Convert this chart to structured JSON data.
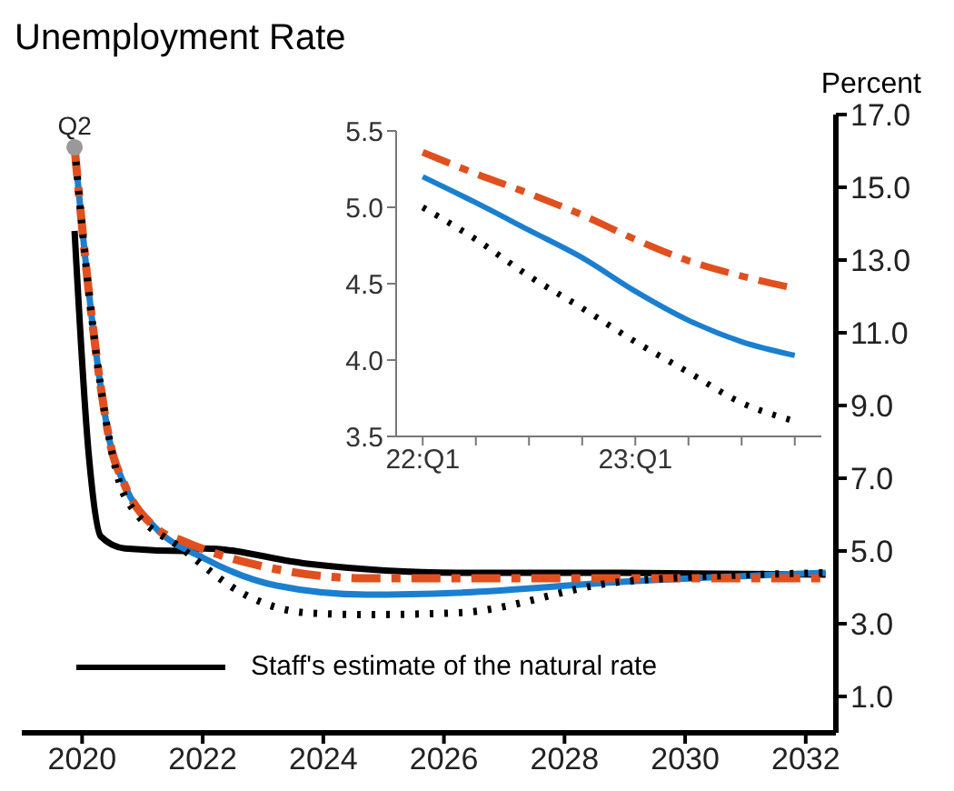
{
  "chart_data": [
    {
      "type": "line",
      "title": "Unemployment Rate",
      "ylabel": "Percent",
      "xlim": [
        2019.5,
        2033
      ],
      "ylim": [
        0,
        17
      ],
      "xticks": [
        {
          "value": 2020.5,
          "label": "2020"
        },
        {
          "value": 2022.5,
          "label": "2022"
        },
        {
          "value": 2024.5,
          "label": "2024"
        },
        {
          "value": 2026.5,
          "label": "2026"
        },
        {
          "value": 2028.5,
          "label": "2028"
        },
        {
          "value": 2030.5,
          "label": "2030"
        },
        {
          "value": 2032.5,
          "label": "2032"
        }
      ],
      "yticks": [
        {
          "value": 1,
          "label": "1.0"
        },
        {
          "value": 3,
          "label": "3.0"
        },
        {
          "value": 5,
          "label": "5.0"
        },
        {
          "value": 7,
          "label": "7.0"
        },
        {
          "value": 9,
          "label": "9.0"
        },
        {
          "value": 11,
          "label": "11.0"
        },
        {
          "value": 13,
          "label": "13.0"
        },
        {
          "value": 15,
          "label": "15.0"
        },
        {
          "value": 17,
          "label": "17.0"
        }
      ],
      "grid": false,
      "legend": "bottom",
      "annotations": [
        {
          "text": "Q2",
          "x": 2020.375,
          "y": 16.1
        }
      ],
      "series": [
        {
          "name": "Staff's estimate of the natural rate",
          "color": "#000000",
          "line_style": "solid",
          "x": [
            2020.375,
            2020.61,
            2020.81,
            2021.21,
            2022.21,
            2022.52,
            2024.23,
            2026.73,
            2029.43,
            2032.83
          ],
          "values": [
            13.8,
            7.65,
            5.4,
            5.07,
            5.0,
            5.07,
            4.65,
            4.4,
            4.4,
            4.35
          ]
        },
        {
          "color": "#1b7fd0",
          "line_style": "solid",
          "x": [
            2020.375,
            2020.61,
            2020.81,
            2020.96,
            2021.21,
            2021.71,
            2022.52,
            2023.72,
            2025.22,
            2026.73,
            2029.43,
            2032.83
          ],
          "values": [
            16.1,
            12.15,
            9.5,
            8.0,
            6.8,
            5.65,
            4.8,
            4.05,
            3.8,
            3.85,
            4.15,
            4.4
          ]
        },
        {
          "color": "#e0501e",
          "line_style": "dashed",
          "x": [
            2020.375,
            2020.61,
            2020.81,
            2020.96,
            2021.21,
            2021.71,
            2022.21,
            2023.72,
            2025.22,
            2026.73,
            2029.43,
            2032.83
          ],
          "values": [
            16.1,
            12.15,
            9.5,
            8.0,
            6.8,
            5.65,
            5.25,
            4.5,
            4.25,
            4.25,
            4.25,
            4.25
          ]
        },
        {
          "color": "#000000",
          "line_style": "dotted",
          "x": [
            2020.375,
            2020.61,
            2020.81,
            2020.96,
            2021.21,
            2022.21,
            2023.2,
            2024.23,
            2025.22,
            2026.73,
            2029.43,
            2032.83
          ],
          "values": [
            16.1,
            12.15,
            9.5,
            8.0,
            6.5,
            5.0,
            3.8,
            3.3,
            3.25,
            3.3,
            4.15,
            4.4
          ]
        },
        {
          "type": "scatter",
          "color": "#999999",
          "marker": "circle",
          "x": [
            2020.375
          ],
          "values": [
            16.1
          ]
        }
      ]
    },
    {
      "type": "line",
      "ylim": [
        3.5,
        5.5
      ],
      "categories": [
        "22:Q1",
        null,
        null,
        null,
        "23:Q1",
        null,
        null,
        null
      ],
      "yticks": [
        {
          "value": 3.5,
          "label": "3.5"
        },
        {
          "value": 4,
          "label": "4.0"
        },
        {
          "value": 4.5,
          "label": "4.5"
        },
        {
          "value": 5,
          "label": "5.0"
        },
        {
          "value": 5.5,
          "label": "5.5"
        }
      ],
      "grid": false,
      "series": [
        {
          "color": "#e0501e",
          "line_style": "dashed",
          "values": [
            5.36,
            5.22,
            5.09,
            4.95,
            4.79,
            4.65,
            4.55,
            4.47
          ]
        },
        {
          "color": "#1b7fd0",
          "line_style": "solid",
          "values": [
            5.2,
            5.03,
            4.85,
            4.67,
            4.45,
            4.26,
            4.12,
            4.03
          ]
        },
        {
          "color": "#000000",
          "line_style": "dotted",
          "values": [
            5.0,
            4.79,
            4.55,
            4.34,
            4.12,
            3.92,
            3.72,
            3.6
          ]
        }
      ]
    }
  ]
}
